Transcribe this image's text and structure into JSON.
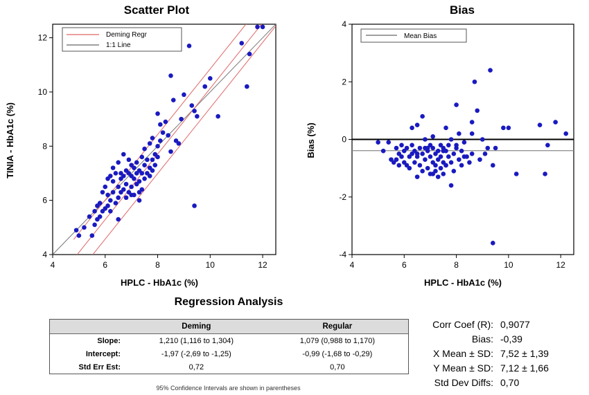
{
  "chart_data": [
    {
      "type": "scatter",
      "title": "Scatter Plot",
      "xlabel": "HPLC - HbA1c (%)",
      "ylabel": "TINIA - HbA1c (%)",
      "xlim": [
        4,
        12.5
      ],
      "ylim": [
        4,
        12.5
      ],
      "xticks": [
        "4",
        "6",
        "8",
        "10",
        "12"
      ],
      "yticks": [
        "4",
        "6",
        "8",
        "10",
        "12"
      ],
      "legend": [
        {
          "label": "Deming Regr",
          "color": "#e06666"
        },
        {
          "label": "1:1 Line",
          "color": "#666666"
        }
      ],
      "deming": {
        "slope": 1.21,
        "intercept": -1.97,
        "ci_offset": 0.72
      },
      "points": {
        "x": [
          4.9,
          5.0,
          5.2,
          5.4,
          5.5,
          5.6,
          5.6,
          5.7,
          5.7,
          5.8,
          5.8,
          5.9,
          5.9,
          6.0,
          6.0,
          6.1,
          6.1,
          6.1,
          6.2,
          6.2,
          6.3,
          6.3,
          6.3,
          6.4,
          6.4,
          6.5,
          6.5,
          6.5,
          6.6,
          6.6,
          6.6,
          6.7,
          6.7,
          6.7,
          6.8,
          6.8,
          6.8,
          6.9,
          6.9,
          6.9,
          7.0,
          7.0,
          7.0,
          7.1,
          7.1,
          7.1,
          7.2,
          7.2,
          7.2,
          7.3,
          7.3,
          7.3,
          7.4,
          7.4,
          7.4,
          7.5,
          7.5,
          7.5,
          7.6,
          7.6,
          7.7,
          7.7,
          7.7,
          7.8,
          7.8,
          7.8,
          7.9,
          7.9,
          8.0,
          8.0,
          8.0,
          8.1,
          8.2,
          8.3,
          8.4,
          8.5,
          8.6,
          8.7,
          8.8,
          8.9,
          9.0,
          9.2,
          9.3,
          9.4,
          9.5,
          9.8,
          10.0,
          10.3,
          11.2,
          11.4,
          11.5,
          11.8,
          12.0,
          9.4,
          6.5,
          7.0,
          8.5,
          8.1,
          7.3,
          6.2
        ],
        "y": [
          4.9,
          4.7,
          5.0,
          5.4,
          4.7,
          5.1,
          5.6,
          5.3,
          5.8,
          5.4,
          5.9,
          5.6,
          6.3,
          5.7,
          6.5,
          5.8,
          6.2,
          6.8,
          6.0,
          6.9,
          6.3,
          6.7,
          7.2,
          5.9,
          7.0,
          6.1,
          6.5,
          7.4,
          6.3,
          6.8,
          7.0,
          6.4,
          6.9,
          7.7,
          6.1,
          6.6,
          7.1,
          6.3,
          7.0,
          7.5,
          6.5,
          6.9,
          7.3,
          6.2,
          6.8,
          7.2,
          6.6,
          7.0,
          7.4,
          6.0,
          6.7,
          7.1,
          6.4,
          7.0,
          7.6,
          6.8,
          7.3,
          7.9,
          7.0,
          7.5,
          6.9,
          7.2,
          8.1,
          7.1,
          7.5,
          8.3,
          7.3,
          7.7,
          7.6,
          8.0,
          9.2,
          8.8,
          8.5,
          8.9,
          8.4,
          10.6,
          9.7,
          8.2,
          8.1,
          9.0,
          9.9,
          11.7,
          9.5,
          9.3,
          9.1,
          10.2,
          10.5,
          9.1,
          11.8,
          10.2,
          11.4,
          12.4,
          12.4,
          5.8,
          5.3,
          6.2,
          7.8,
          8.2,
          6.3,
          5.6
        ]
      }
    },
    {
      "type": "scatter",
      "title": "Bias",
      "xlabel": "HPLC - HbA1c (%)",
      "ylabel": "Bias (%)",
      "xlim": [
        4,
        12.5
      ],
      "ylim": [
        -4,
        4
      ],
      "xticks": [
        "4",
        "6",
        "8",
        "10",
        "12"
      ],
      "yticks": [
        "4",
        "2",
        "0",
        "-2",
        "-4"
      ],
      "legend": [
        {
          "label": "Mean Bias",
          "color": "#666666"
        }
      ],
      "mean_bias": -0.39,
      "points": {
        "x": [
          5.0,
          5.2,
          5.4,
          5.5,
          5.6,
          5.7,
          5.8,
          5.8,
          5.9,
          5.9,
          6.0,
          6.0,
          6.1,
          6.1,
          6.2,
          6.2,
          6.3,
          6.3,
          6.4,
          6.4,
          6.5,
          6.5,
          6.5,
          6.6,
          6.6,
          6.7,
          6.7,
          6.7,
          6.8,
          6.8,
          6.8,
          6.9,
          6.9,
          7.0,
          7.0,
          7.0,
          7.1,
          7.1,
          7.1,
          7.2,
          7.2,
          7.2,
          7.3,
          7.3,
          7.3,
          7.4,
          7.4,
          7.4,
          7.5,
          7.5,
          7.5,
          7.6,
          7.6,
          7.6,
          7.7,
          7.7,
          7.8,
          7.8,
          7.8,
          7.9,
          7.9,
          8.0,
          8.0,
          8.1,
          8.1,
          8.2,
          8.2,
          8.3,
          8.4,
          8.5,
          8.6,
          8.6,
          8.7,
          8.8,
          8.9,
          9.0,
          9.1,
          9.2,
          9.3,
          9.4,
          9.5,
          9.8,
          10.0,
          10.3,
          11.2,
          11.4,
          11.5,
          11.8,
          12.2,
          9.4,
          6.5,
          6.9,
          7.6,
          8.0,
          8.3,
          5.7,
          6.3,
          7.1,
          8.6,
          7.5
        ],
        "y": [
          -0.1,
          -0.4,
          -0.1,
          -0.7,
          -0.8,
          -0.3,
          -0.5,
          -0.9,
          -0.2,
          -0.6,
          -0.4,
          -0.8,
          -0.9,
          -0.3,
          -0.6,
          -1.0,
          -0.5,
          -0.2,
          -0.8,
          -0.4,
          -1.3,
          -0.6,
          0.5,
          -0.3,
          -0.9,
          -1.1,
          -0.5,
          0.8,
          0.0,
          -0.7,
          -0.3,
          -0.4,
          -1.0,
          -0.2,
          -0.6,
          -1.2,
          -0.8,
          -0.3,
          0.1,
          -0.5,
          -1.1,
          -0.9,
          -0.7,
          -0.4,
          -1.3,
          -0.2,
          -0.6,
          -1.0,
          -0.3,
          -0.8,
          -1.2,
          0.4,
          -0.4,
          -0.9,
          -0.6,
          -0.2,
          -1.6,
          -0.8,
          0.0,
          -0.5,
          -1.1,
          1.2,
          -0.3,
          -0.7,
          0.2,
          -0.4,
          -0.9,
          -0.1,
          -0.6,
          -0.8,
          0.2,
          -0.5,
          2.0,
          1.0,
          -0.7,
          0.0,
          -0.5,
          -0.3,
          2.4,
          -3.6,
          -0.3,
          0.4,
          0.4,
          -1.2,
          0.5,
          -1.2,
          -0.2,
          0.6,
          0.2,
          -0.9,
          -0.5,
          -0.3,
          -0.9,
          -0.2,
          -0.6,
          -0.7,
          0.4,
          -1.2,
          0.6,
          -0.4
        ]
      }
    }
  ],
  "regression": {
    "title": "Regression Analysis",
    "headers": [
      "",
      "Deming",
      "Regular"
    ],
    "rows": [
      [
        "Slope:",
        "1,210 (1,116 to 1,304)",
        "1,079 (0,988 to 1,170)"
      ],
      [
        "Intercept:",
        "-1,97 (-2,69 to -1,25)",
        "-0,99 (-1,68 to -0,29)"
      ],
      [
        "Std Err Est:",
        "0,72",
        "0,70"
      ]
    ],
    "note": "95% Confidence Intervals are shown in parentheses"
  },
  "stats": [
    {
      "label": "Corr Coef (R):",
      "value": "0,9077"
    },
    {
      "label": "Bias:",
      "value": "-0,39"
    },
    {
      "label": "X Mean ± SD:",
      "value": "7,52 ± 1,39"
    },
    {
      "label": "Y Mean ± SD:",
      "value": "7,12 ± 1,66"
    },
    {
      "label": "Std Dev Diffs:",
      "value": "0,70"
    }
  ]
}
